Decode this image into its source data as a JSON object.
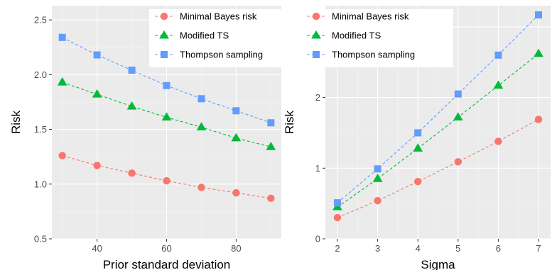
{
  "chart_data": [
    {
      "type": "line",
      "xlabel": "Prior standard deviation",
      "ylabel": "Risk",
      "xlim": [
        27,
        93
      ],
      "ylim": [
        0.5,
        2.63
      ],
      "xticks": [
        40,
        60,
        80
      ],
      "xtick_labels": [
        "40",
        "60",
        "80"
      ],
      "yticks": [
        0.5,
        1.0,
        1.5,
        2.0,
        2.5
      ],
      "ytick_labels": [
        "0.5",
        "1.0",
        "1.5",
        "2.0",
        "2.5"
      ],
      "x": [
        30,
        40,
        50,
        60,
        70,
        80,
        90
      ],
      "grid": true,
      "legend_position": "top-right",
      "series": [
        {
          "name": "Minimal Bayes risk",
          "color": "#F8766D",
          "marker": "circle",
          "values": [
            1.26,
            1.17,
            1.1,
            1.03,
            0.97,
            0.92,
            0.87
          ]
        },
        {
          "name": "Modified TS",
          "color": "#00BA38",
          "marker": "triangle",
          "values": [
            1.93,
            1.82,
            1.71,
            1.61,
            1.52,
            1.42,
            1.34
          ]
        },
        {
          "name": "Thompson sampling",
          "color": "#619CFF",
          "marker": "square",
          "values": [
            2.34,
            2.18,
            2.04,
            1.9,
            1.78,
            1.67,
            1.56
          ]
        }
      ]
    },
    {
      "type": "line",
      "xlabel": "Sigma",
      "ylabel": "Risk",
      "xlim": [
        1.7,
        7.3
      ],
      "ylim": [
        0,
        3.3
      ],
      "xticks": [
        2,
        3,
        4,
        5,
        6,
        7
      ],
      "xtick_labels": [
        "2",
        "3",
        "4",
        "5",
        "6",
        "7"
      ],
      "yticks": [
        0,
        1,
        2,
        3
      ],
      "ytick_labels": [
        "0",
        "1",
        "2",
        "3"
      ],
      "x": [
        2,
        3,
        4,
        5,
        6,
        7
      ],
      "grid": true,
      "legend_position": "top",
      "series": [
        {
          "name": "Minimal Bayes risk",
          "color": "#F8766D",
          "marker": "circle",
          "values": [
            0.3,
            0.54,
            0.81,
            1.09,
            1.38,
            1.69
          ]
        },
        {
          "name": "Modified TS",
          "color": "#00BA38",
          "marker": "triangle",
          "values": [
            0.45,
            0.85,
            1.28,
            1.72,
            2.17,
            2.62
          ]
        },
        {
          "name": "Thompson sampling",
          "color": "#619CFF",
          "marker": "square",
          "values": [
            0.51,
            0.99,
            1.5,
            2.05,
            2.6,
            3.17
          ]
        }
      ]
    }
  ]
}
